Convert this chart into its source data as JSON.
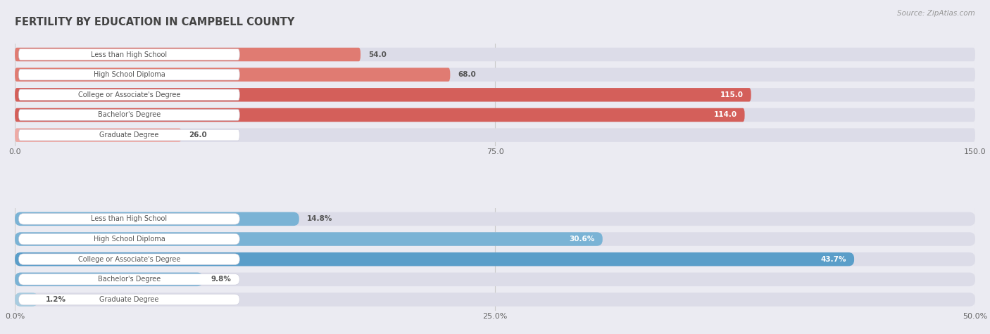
{
  "title": "FERTILITY BY EDUCATION IN CAMPBELL COUNTY",
  "source": "Source: ZipAtlas.com",
  "top_chart": {
    "categories": [
      "Less than High School",
      "High School Diploma",
      "College or Associate's Degree",
      "Bachelor's Degree",
      "Graduate Degree"
    ],
    "values": [
      54.0,
      68.0,
      115.0,
      114.0,
      26.0
    ],
    "xlim": [
      0,
      150
    ],
    "xticks": [
      0.0,
      75.0,
      150.0
    ],
    "xtick_labels": [
      "0.0",
      "75.0",
      "150.0"
    ],
    "bar_colors": [
      "#e07b72",
      "#e07b72",
      "#d45f5a",
      "#d45f5a",
      "#eeaaa5"
    ],
    "value_inside": [
      false,
      false,
      true,
      true,
      false
    ]
  },
  "bottom_chart": {
    "categories": [
      "Less than High School",
      "High School Diploma",
      "College or Associate's Degree",
      "Bachelor's Degree",
      "Graduate Degree"
    ],
    "values": [
      14.8,
      30.6,
      43.7,
      9.8,
      1.2
    ],
    "xlim": [
      0,
      50
    ],
    "xticks": [
      0.0,
      25.0,
      50.0
    ],
    "xtick_labels": [
      "0.0%",
      "25.0%",
      "50.0%"
    ],
    "bar_colors": [
      "#7ab3d5",
      "#7ab3d5",
      "#5a9ec9",
      "#7ab3d5",
      "#a8cce0"
    ],
    "value_inside": [
      false,
      true,
      true,
      false,
      false
    ]
  },
  "background_color": "#ebebf2",
  "bar_bg_color": "#dcdce8",
  "label_box_color": "#ffffff",
  "label_text_color": "#555555",
  "value_text_dark": "#555555",
  "value_text_light": "#ffffff",
  "title_color": "#444444",
  "source_color": "#999999",
  "grid_color": "#cccccc"
}
